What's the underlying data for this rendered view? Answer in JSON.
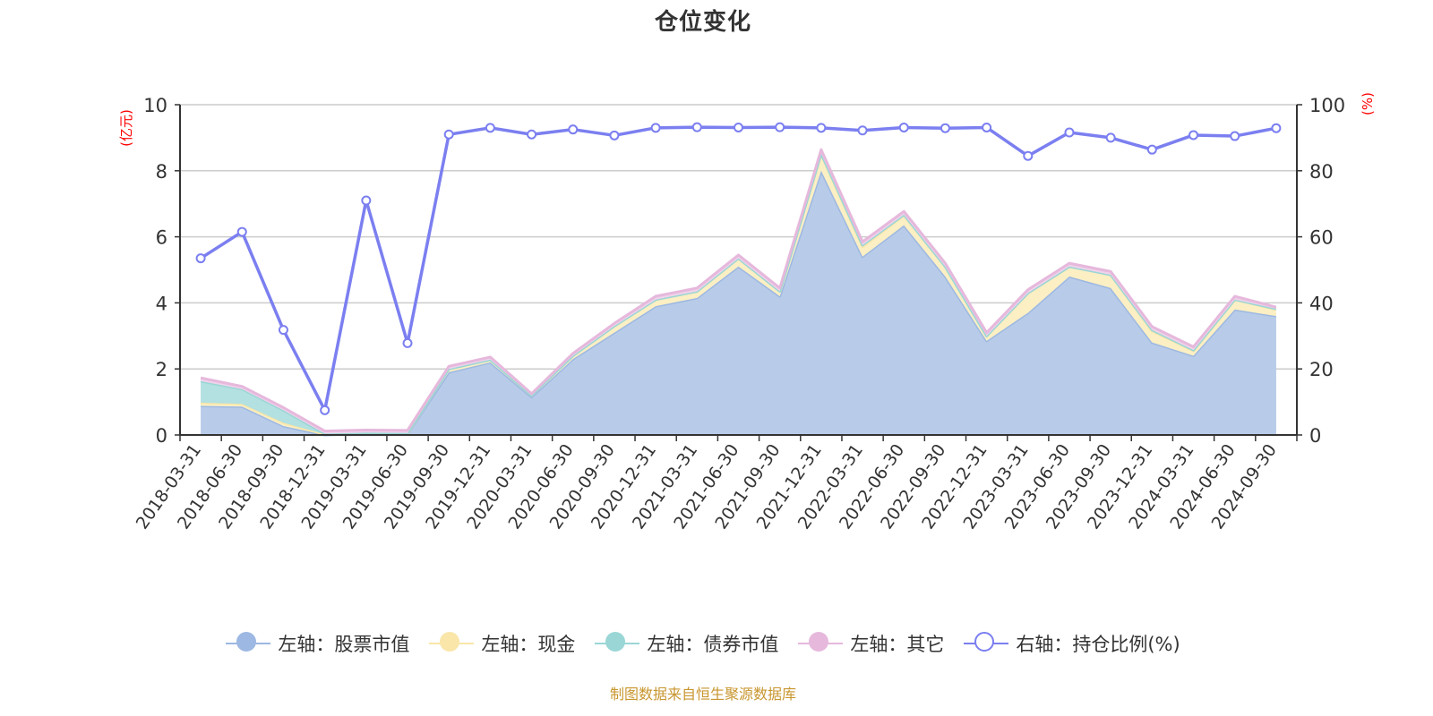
{
  "header": {
    "title": "仓位变化"
  },
  "axes": {
    "left_unit": "(亿元)",
    "right_unit": "(%)",
    "left_ticks": [
      "0",
      "2",
      "4",
      "6",
      "8",
      "10"
    ],
    "right_ticks": [
      "0",
      "20",
      "40",
      "60",
      "80",
      "100"
    ]
  },
  "legend": {
    "items": [
      {
        "label": "左轴：股票市值",
        "color": "#9db8e2",
        "icon": "filled-circle-icon"
      },
      {
        "label": "左轴：现金",
        "color": "#f9e6a8",
        "icon": "filled-circle-icon"
      },
      {
        "label": "左轴：债券市值",
        "color": "#9ad6d6",
        "icon": "filled-circle-icon"
      },
      {
        "label": "左轴：其它",
        "color": "#e6b8dc",
        "icon": "filled-circle-icon"
      },
      {
        "label": "右轴：持仓比例(%)",
        "color": "#7b7ff0",
        "icon": "hollow-circle-icon"
      }
    ]
  },
  "footer": {
    "source": "制图数据来自恒生聚源数据库"
  },
  "chart_data": {
    "type": "area",
    "title": "仓位变化",
    "xlabel": "",
    "ylabel": "(亿元)",
    "ylabel_right": "(%)",
    "ylim": [
      0,
      10
    ],
    "ylim_right": [
      0,
      100
    ],
    "grid": true,
    "legend_position": "bottom",
    "stacked": true,
    "categories": [
      "2018-03-31",
      "2018-06-30",
      "2018-09-30",
      "2018-12-31",
      "2019-03-31",
      "2019-06-30",
      "2019-09-30",
      "2019-12-31",
      "2020-03-31",
      "2020-06-30",
      "2020-09-30",
      "2020-12-31",
      "2021-03-31",
      "2021-06-30",
      "2021-09-30",
      "2021-12-31",
      "2022-03-31",
      "2022-06-30",
      "2022-09-30",
      "2022-12-31",
      "2023-03-31",
      "2023-06-30",
      "2023-09-30",
      "2023-12-31",
      "2024-03-31",
      "2024-06-30",
      "2024-09-30"
    ],
    "series": [
      {
        "name": "左轴：股票市值",
        "axis": "left",
        "type": "area",
        "color": "#9db8e2",
        "values": [
          0.88,
          0.86,
          0.27,
          0.0,
          0.03,
          0.03,
          1.9,
          2.2,
          1.15,
          2.3,
          3.1,
          3.9,
          4.15,
          5.1,
          4.2,
          8.0,
          5.4,
          6.35,
          4.8,
          2.85,
          3.7,
          4.8,
          4.45,
          2.8,
          2.4,
          3.8,
          3.6
        ]
      },
      {
        "name": "左轴：现金",
        "axis": "left",
        "type": "area",
        "color": "#f9e6a8",
        "values": [
          0.1,
          0.08,
          0.1,
          0.02,
          0.02,
          0.02,
          0.1,
          0.08,
          0.05,
          0.1,
          0.2,
          0.2,
          0.2,
          0.25,
          0.15,
          0.5,
          0.3,
          0.3,
          0.3,
          0.15,
          0.6,
          0.3,
          0.4,
          0.35,
          0.15,
          0.3,
          0.2
        ]
      },
      {
        "name": "左轴：债券市值",
        "axis": "left",
        "type": "area",
        "color": "#9ad6d6",
        "values": [
          0.65,
          0.45,
          0.38,
          0.02,
          0.02,
          0.01,
          0.0,
          0.0,
          0.0,
          0.0,
          0.0,
          0.0,
          0.0,
          0.0,
          0.0,
          0.02,
          0.05,
          0.02,
          0.0,
          0.0,
          0.0,
          0.0,
          0.0,
          0.03,
          0.02,
          0.0,
          0.02
        ]
      },
      {
        "name": "左轴：其它",
        "axis": "left",
        "type": "area",
        "color": "#e6b8dc",
        "values": [
          0.1,
          0.08,
          0.08,
          0.08,
          0.08,
          0.08,
          0.08,
          0.08,
          0.05,
          0.07,
          0.08,
          0.1,
          0.1,
          0.1,
          0.1,
          0.12,
          0.1,
          0.1,
          0.1,
          0.1,
          0.1,
          0.1,
          0.1,
          0.1,
          0.1,
          0.1,
          0.05
        ]
      },
      {
        "name": "右轴：持仓比例(%)",
        "axis": "right",
        "type": "line",
        "color": "#7b7ff0",
        "values": [
          53.5,
          61.5,
          31.8,
          7.5,
          71.0,
          27.8,
          91.0,
          93.0,
          91.0,
          92.5,
          90.7,
          93.0,
          93.2,
          93.1,
          93.2,
          93.0,
          92.2,
          93.1,
          92.9,
          93.1,
          84.5,
          91.6,
          90.0,
          86.4,
          90.8,
          90.5,
          92.9
        ]
      }
    ]
  }
}
